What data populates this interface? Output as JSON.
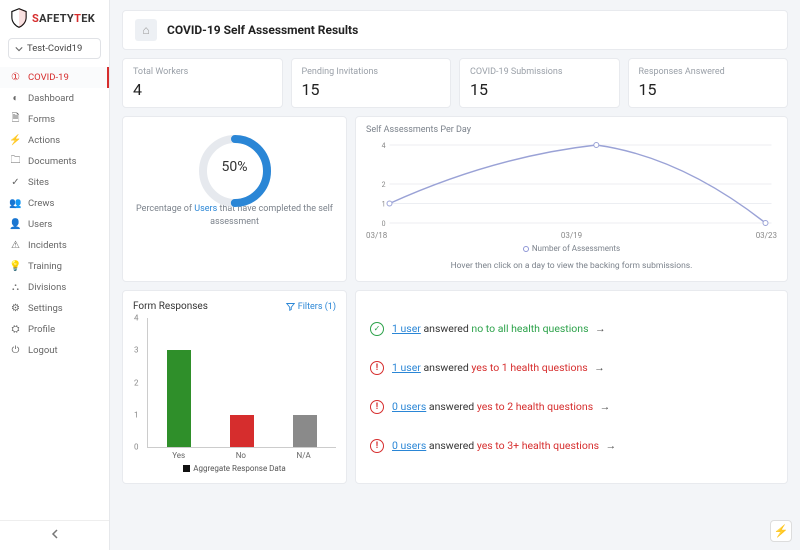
{
  "brand": {
    "name_a": "S",
    "name_b": "AFETY",
    "name_c": "T",
    "name_d": "EK"
  },
  "project_selector": {
    "label": "Test-Covid19"
  },
  "nav": [
    {
      "key": "covid",
      "label": "COVID-19",
      "icon": "alert",
      "active": true
    },
    {
      "key": "dashboard",
      "label": "Dashboard",
      "icon": "gauge"
    },
    {
      "key": "forms",
      "label": "Forms",
      "icon": "doc"
    },
    {
      "key": "actions",
      "label": "Actions",
      "icon": "bolt"
    },
    {
      "key": "documents",
      "label": "Documents",
      "icon": "folder"
    },
    {
      "key": "sites",
      "label": "Sites",
      "icon": "check"
    },
    {
      "key": "crews",
      "label": "Crews",
      "icon": "people"
    },
    {
      "key": "users",
      "label": "Users",
      "icon": "user"
    },
    {
      "key": "incidents",
      "label": "Incidents",
      "icon": "warn"
    },
    {
      "key": "training",
      "label": "Training",
      "icon": "bulb"
    },
    {
      "key": "divisions",
      "label": "Divisions",
      "icon": "tree"
    },
    {
      "key": "settings",
      "label": "Settings",
      "icon": "cog"
    },
    {
      "key": "profile",
      "label": "Profile",
      "icon": "person"
    },
    {
      "key": "logout",
      "label": "Logout",
      "icon": "power"
    }
  ],
  "header": {
    "title": "COVID-19 Self Assessment Results"
  },
  "stats": [
    {
      "label": "Total Workers",
      "value": "4"
    },
    {
      "label": "Pending Invitations",
      "value": "15"
    },
    {
      "label": "COVID-19 Submissions",
      "value": "15"
    },
    {
      "label": "Responses Answered",
      "value": "15"
    }
  ],
  "gauge": {
    "percent": 50,
    "display": "50%",
    "track_color": "#e6e9ee",
    "fill_color": "#2a86d6",
    "caption_pre": "Percentage of ",
    "caption_link": "Users",
    "caption_post": " that have completed the self assessment"
  },
  "line_chart": {
    "title": "Self Assessments Per Day",
    "ylim": [
      0,
      4
    ],
    "yticks": [
      0,
      1,
      2,
      4
    ],
    "x_labels": [
      "03/18",
      "03/19",
      "03/23"
    ],
    "points": [
      {
        "x": 0.0,
        "y": 1.0
      },
      {
        "x": 0.55,
        "y": 4.0
      },
      {
        "x": 1.0,
        "y": 0.0
      }
    ],
    "line_color": "#9aa2d6",
    "marker_color": "#ffffff",
    "marker_border": "#9aa2d6",
    "grid_color": "#eceef2",
    "legend": "Number of Assessments",
    "hint": "Hover then click on a day to view the backing form submissions."
  },
  "bar_chart": {
    "title": "Form Responses",
    "filters_label": "Filters (1)",
    "ylim": [
      0,
      4
    ],
    "yticks": [
      0,
      1,
      2,
      3,
      4
    ],
    "bars": [
      {
        "label": "Yes",
        "value": 3,
        "color": "#2f8f2a"
      },
      {
        "label": "No",
        "value": 1,
        "color": "#d62d2d"
      },
      {
        "label": "N/A",
        "value": 1,
        "color": "#8a8a8a"
      }
    ],
    "legend": "Aggregate Response Data"
  },
  "responses": [
    {
      "status": "ok",
      "link": "1 user",
      "mid": " answered ",
      "highlight": "no to all health questions",
      "hl_color": "green"
    },
    {
      "status": "warn",
      "link": "1 user",
      "mid": " answered ",
      "highlight": "yes to 1 health questions",
      "hl_color": "red"
    },
    {
      "status": "warn",
      "link": "0 users",
      "mid": " answered ",
      "highlight": "yes to 2 health questions",
      "hl_color": "red"
    },
    {
      "status": "warn",
      "link": "0 users",
      "mid": " answered ",
      "highlight": "yes to 3+ health questions",
      "hl_color": "red"
    }
  ],
  "colors": {
    "bg": "#f3f5f8",
    "card_border": "#e8eaee",
    "accent": "#2a86d6",
    "danger": "#d62d2d"
  }
}
